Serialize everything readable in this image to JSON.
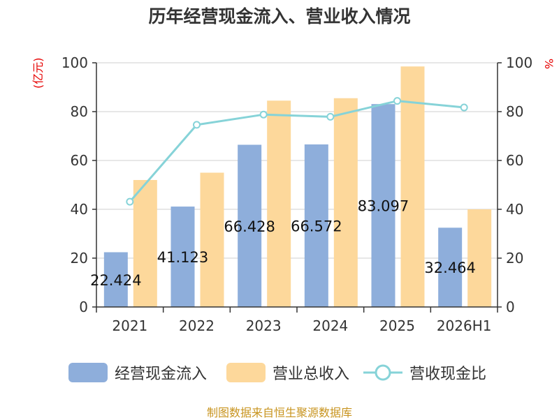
{
  "chart_data": {
    "type": "bar+line",
    "title": "历年经营现金流入、营业收入情况",
    "categories": [
      "2021",
      "2022",
      "2023",
      "2024",
      "2025",
      "2026H1"
    ],
    "left_unit": "(亿元)",
    "right_unit": "%",
    "ylim_left": [
      0,
      100
    ],
    "ylim_right": [
      0,
      100
    ],
    "left_ticks": [
      "0",
      "20",
      "40",
      "60",
      "80",
      "100"
    ],
    "right_ticks": [
      "0",
      "20",
      "40",
      "60",
      "80",
      "100"
    ],
    "series": [
      {
        "name": "经营现金流入",
        "type": "bar",
        "axis": "left",
        "color": "#8eaedb",
        "values": [
          22.424,
          41.123,
          66.428,
          66.572,
          83.097,
          32.464
        ],
        "labels": [
          "22.424",
          "41.123",
          "66.428",
          "66.572",
          "83.097",
          "32.464"
        ]
      },
      {
        "name": "营业总收入",
        "type": "bar",
        "axis": "left",
        "color": "#fdd89b",
        "values": [
          52,
          55,
          84.5,
          85.5,
          98.5,
          40
        ]
      },
      {
        "name": "营收现金比",
        "type": "line",
        "axis": "right",
        "color": "#86d3d8",
        "values": [
          43.1,
          74.6,
          78.8,
          77.9,
          84.4,
          81.7
        ]
      }
    ],
    "grid": true,
    "legend_position": "bottom"
  },
  "source_text": "制图数据来自恒生聚源数据库"
}
